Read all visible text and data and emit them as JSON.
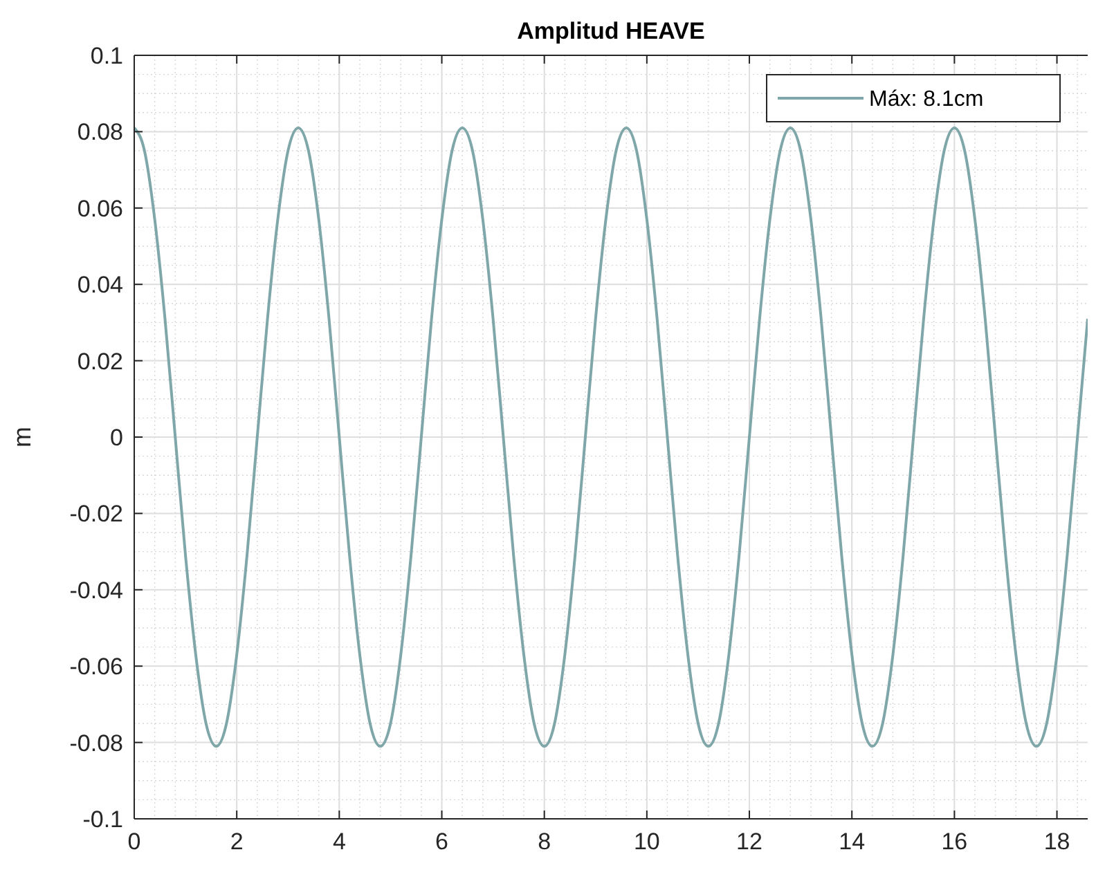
{
  "chart_data": {
    "type": "line",
    "title": "Amplitud HEAVE",
    "ylabel": "m",
    "x": [
      0,
      0.2,
      0.4,
      0.6,
      0.8,
      1,
      1.2,
      1.4,
      1.6,
      1.8,
      2,
      2.2,
      2.4,
      2.6,
      2.8,
      3,
      3.2,
      3.4,
      3.6,
      3.8,
      4,
      4.2,
      4.4,
      4.6,
      4.8,
      5,
      5.2,
      5.4,
      5.6,
      5.8,
      6,
      6.2,
      6.4,
      6.6,
      6.8,
      7,
      7.2,
      7.4,
      7.6,
      7.8,
      8,
      8.2,
      8.4,
      8.6,
      8.8,
      9,
      9.2,
      9.4,
      9.6,
      9.8,
      10,
      10.2,
      10.4,
      10.6,
      10.8,
      11,
      11.2,
      11.4,
      11.6,
      11.8,
      12,
      12.2,
      12.4,
      12.6,
      12.8,
      13,
      13.2,
      13.4,
      13.6,
      13.8,
      14,
      14.2,
      14.4,
      14.6,
      14.8,
      15,
      15.2,
      15.4,
      15.6,
      15.8,
      16,
      16.2,
      16.4,
      16.6,
      16.8,
      17,
      17.2,
      17.4,
      17.6,
      17.8,
      18,
      18.2,
      18.4,
      18.6
    ],
    "series": [
      {
        "name": "Máx: 8.1cm",
        "color": "#7fa6a8",
        "values": [
          0.081,
          0.075,
          0.057,
          0.031,
          0,
          -0.031,
          -0.057,
          -0.075,
          -0.081,
          -0.075,
          -0.057,
          -0.031,
          0,
          0.031,
          0.057,
          0.075,
          0.081,
          0.075,
          0.057,
          0.031,
          0,
          -0.031,
          -0.057,
          -0.075,
          -0.081,
          -0.075,
          -0.057,
          -0.031,
          0,
          0.031,
          0.057,
          0.075,
          0.081,
          0.075,
          0.057,
          0.031,
          0,
          -0.031,
          -0.057,
          -0.075,
          -0.081,
          -0.075,
          -0.057,
          -0.031,
          0,
          0.031,
          0.057,
          0.075,
          0.081,
          0.075,
          0.057,
          0.031,
          0,
          -0.031,
          -0.057,
          -0.075,
          -0.081,
          -0.075,
          -0.057,
          -0.031,
          0,
          0.031,
          0.057,
          0.075,
          0.081,
          0.075,
          0.057,
          0.031,
          0,
          -0.031,
          -0.057,
          -0.075,
          -0.081,
          -0.075,
          -0.057,
          -0.031,
          0,
          0.031,
          0.057,
          0.075,
          0.081,
          0.075,
          0.057,
          0.031,
          0,
          -0.031,
          -0.057,
          -0.075,
          -0.081,
          -0.075,
          -0.057,
          -0.031,
          0,
          0.031
        ]
      }
    ],
    "xlim": [
      0,
      18.6
    ],
    "ylim": [
      -0.1,
      0.1
    ],
    "xticks": [
      0,
      2,
      4,
      6,
      8,
      10,
      12,
      14,
      16,
      18
    ],
    "yticks": [
      -0.1,
      -0.08,
      -0.06,
      -0.04,
      -0.02,
      0,
      0.02,
      0.04,
      0.06,
      0.08,
      0.1
    ],
    "grid": true,
    "legend": "top right",
    "line_style": "solid",
    "marker": "none"
  }
}
